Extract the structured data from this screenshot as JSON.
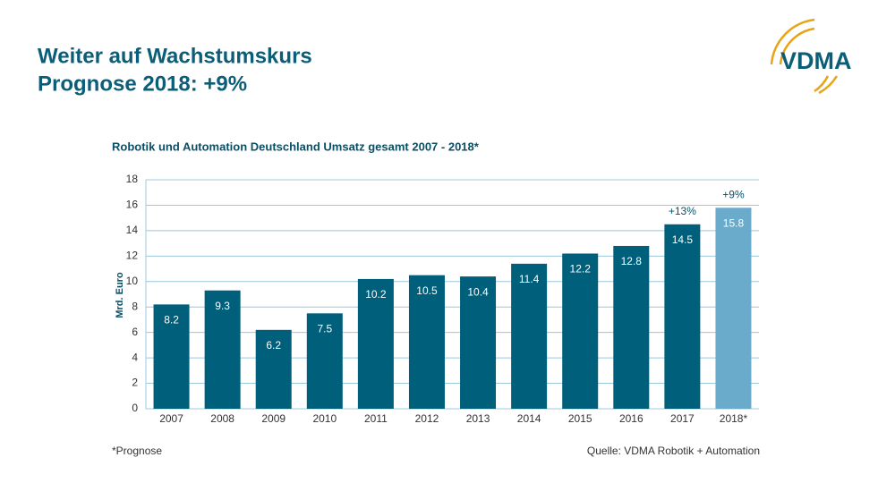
{
  "header": {
    "title": "Weiter auf Wachstumskurs",
    "subtitle": "Prognose 2018: +9%"
  },
  "logo": "VDMA",
  "chart_data": {
    "type": "bar",
    "title": "Robotik und Automation Deutschland Umsatz gesamt 2007 - 2018*",
    "y_label": "Mrd. Euro",
    "categories": [
      "2007",
      "2008",
      "2009",
      "2010",
      "2011",
      "2012",
      "2013",
      "2014",
      "2015",
      "2016",
      "2017",
      "2018*"
    ],
    "values": [
      8.2,
      9.3,
      6.2,
      7.5,
      10.2,
      10.5,
      10.4,
      11.4,
      12.2,
      12.8,
      14.5,
      15.8
    ],
    "colors": [
      "#005f7b",
      "#005f7b",
      "#005f7b",
      "#005f7b",
      "#005f7b",
      "#005f7b",
      "#005f7b",
      "#005f7b",
      "#005f7b",
      "#005f7b",
      "#005f7b",
      "#6aaacb"
    ],
    "ylim": [
      0,
      18
    ],
    "yticks": [
      0,
      2,
      4,
      6,
      8,
      10,
      12,
      14,
      16,
      18
    ],
    "grid": true,
    "annotations": [
      {
        "label": "+13%",
        "category": "2017"
      },
      {
        "label": "+9%",
        "category": "2018*"
      }
    ]
  },
  "footnote": "*Prognose",
  "source": "Quelle: VDMA Robotik + Automation"
}
